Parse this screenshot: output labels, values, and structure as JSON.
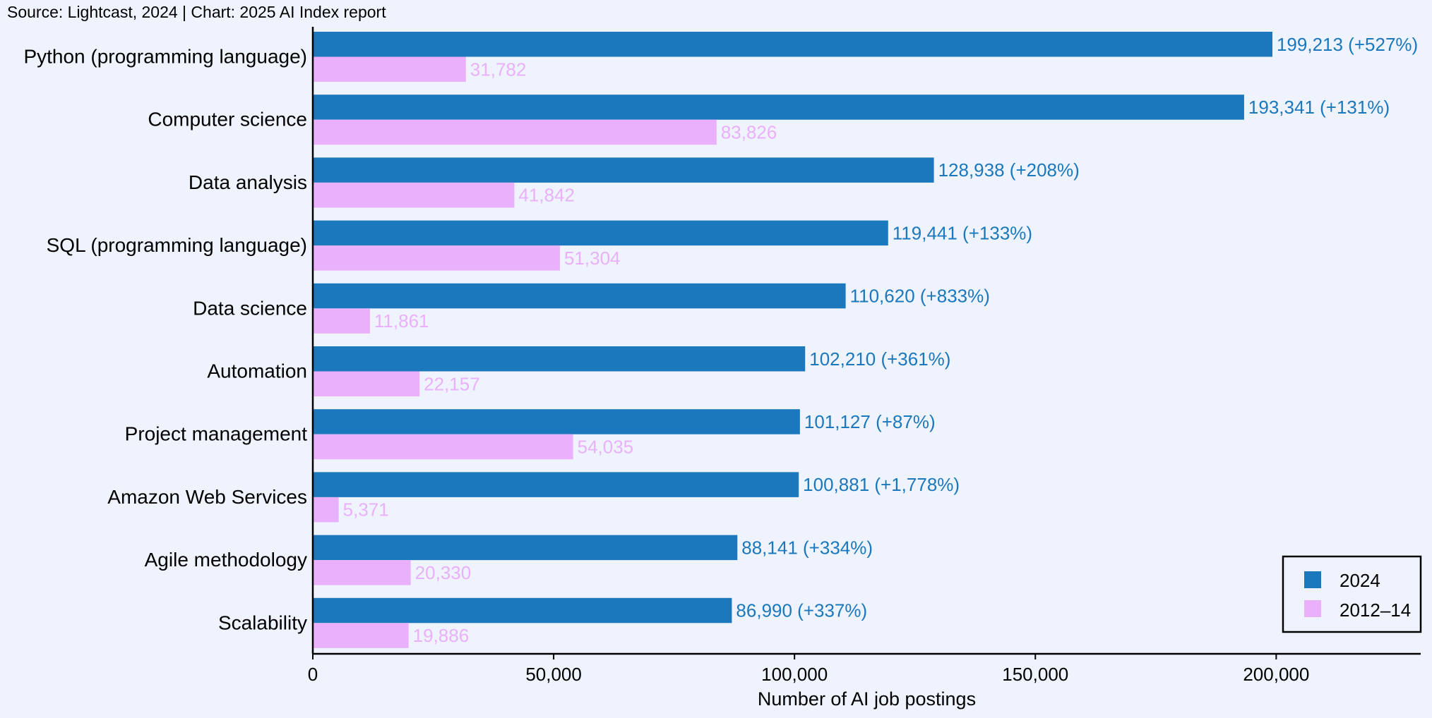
{
  "source_text": "Source: Lightcast, 2024 | Chart: 2025 AI Index report",
  "colors": {
    "series_2024": "#1c78bc",
    "series_2012": "#eab0fb",
    "background": "#eef3fd"
  },
  "chart_data": {
    "type": "bar",
    "orientation": "horizontal",
    "title": "",
    "xlabel": "Number of AI job postings",
    "ylabel": "",
    "xlim": [
      0,
      230000
    ],
    "grid": false,
    "legend_position": "bottom-right",
    "categories": [
      "Python (programming language)",
      "Computer science",
      "Data analysis",
      "SQL (programming language)",
      "Data science",
      "Automation",
      "Project management",
      "Amazon Web Services",
      "Agile methodology",
      "Scalability"
    ],
    "x_ticks": [
      {
        "value": 0,
        "label": "0"
      },
      {
        "value": 50000,
        "label": "50,000"
      },
      {
        "value": 100000,
        "label": "100,000"
      },
      {
        "value": 150000,
        "label": "150,000"
      },
      {
        "value": 200000,
        "label": "200,000"
      }
    ],
    "series": [
      {
        "name": "2024",
        "values": [
          199213,
          193341,
          128938,
          119441,
          110620,
          102210,
          101127,
          100881,
          88141,
          86990
        ],
        "labels": [
          "199,213 (+527%)",
          "193,341 (+131%)",
          "128,938 (+208%)",
          "119,441 (+133%)",
          "110,620 (+833%)",
          "102,210 (+361%)",
          "101,127 (+87%)",
          "100,881 (+1,778%)",
          "88,141 (+334%)",
          "86,990 (+337%)"
        ]
      },
      {
        "name": "2012–14",
        "values": [
          31782,
          83826,
          41842,
          51304,
          11861,
          22157,
          54035,
          5371,
          20330,
          19886
        ],
        "labels": [
          "31,782",
          "83,826",
          "41,842",
          "51,304",
          "11,861",
          "22,157",
          "54,035",
          "5,371",
          "20,330",
          "19,886"
        ]
      }
    ]
  }
}
